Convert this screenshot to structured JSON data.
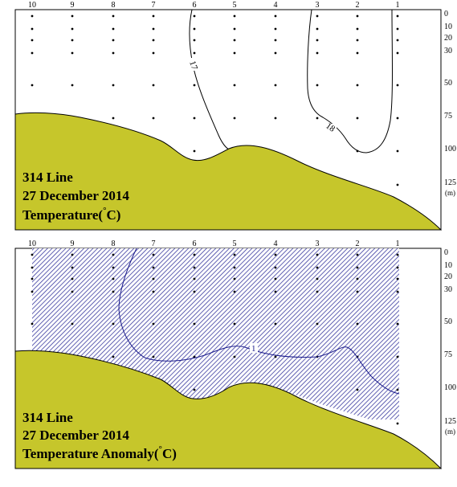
{
  "chart_data": [
    {
      "type": "contour",
      "panel": "top",
      "station_labels": [
        "10",
        "9",
        "8",
        "7",
        "6",
        "5",
        "4",
        "3",
        "2",
        "1"
      ],
      "depth_labels": [
        "0",
        "10",
        "20",
        "30",
        "50",
        "75",
        "100",
        "125"
      ],
      "depth_unit": "(m)",
      "caption": [
        "314 Line",
        "27 December 2014",
        "Temperature(",
        "°",
        "C)"
      ],
      "contour_levels": [
        "17",
        "18"
      ],
      "colors": {
        "seafloor": "#c6c62b",
        "contour": "#000000"
      }
    },
    {
      "type": "contour",
      "panel": "bottom",
      "station_labels": [
        "10",
        "9",
        "8",
        "7",
        "6",
        "5",
        "4",
        "3",
        "2",
        "1"
      ],
      "depth_labels": [
        "0",
        "10",
        "20",
        "30",
        "50",
        "75",
        "100",
        "125"
      ],
      "depth_unit": "(m)",
      "caption": [
        "314 Line",
        "27 December 2014",
        "Temperature Anomaly(",
        "°",
        "C)"
      ],
      "contour_levels": [
        "1"
      ],
      "colors": {
        "seafloor": "#c6c62b",
        "contour": "#1a1a8c",
        "hatch": "#3a3aa0"
      }
    }
  ]
}
